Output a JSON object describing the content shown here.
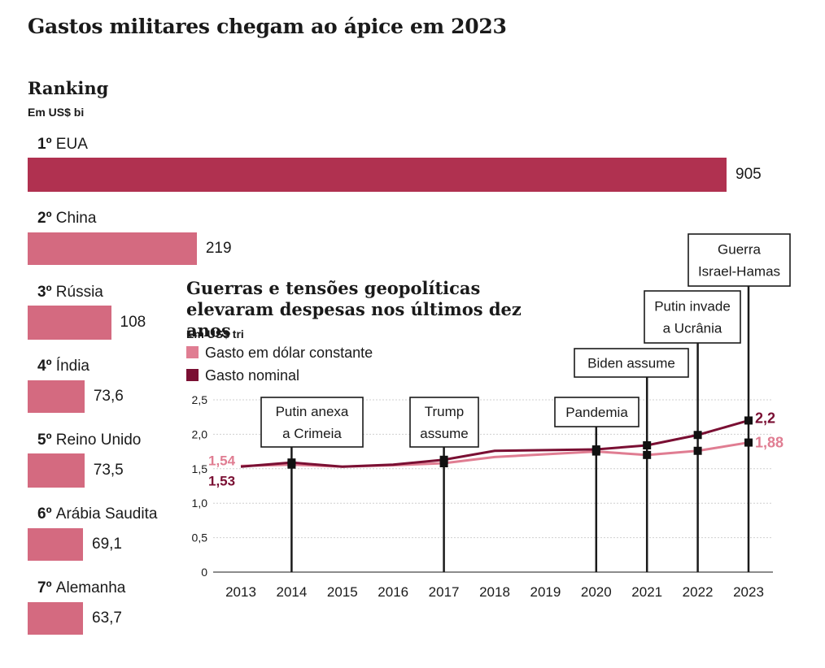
{
  "title": "Gastos militares chegam ao ápice em 2023",
  "colors": {
    "bar_top": "#b03150",
    "bar": "#d46a80",
    "constant": "#e07d92",
    "nominal": "#7a0f33"
  },
  "ranking": {
    "title": "Ranking",
    "unit": "Em US$ bi"
  },
  "chart_data": [
    {
      "type": "bar",
      "orientation": "horizontal",
      "title": "Ranking",
      "unit": "Em US$ bi",
      "categories": [
        "EUA",
        "China",
        "Rússia",
        "Índia",
        "Reino Unido",
        "Arábia Saudita",
        "Alemanha"
      ],
      "ranks": [
        "1º",
        "2º",
        "3º",
        "4º",
        "5º",
        "6º",
        "7º"
      ],
      "values": [
        905,
        219,
        108,
        73.6,
        73.5,
        69.1,
        63.7
      ],
      "value_labels": [
        "905",
        "219",
        "108",
        "73,6",
        "73,5",
        "69,1",
        "63,7"
      ]
    },
    {
      "type": "line",
      "title": "Guerras e tensões geopolíticas elevaram despesas nos últimos dez anos",
      "unit": "Em US$ tri",
      "x": [
        2013,
        2014,
        2015,
        2016,
        2017,
        2018,
        2019,
        2020,
        2021,
        2022,
        2023
      ],
      "ylim": [
        0,
        2.5
      ],
      "yticks": [
        "0",
        "0,5",
        "1,0",
        "1,5",
        "2,0",
        "2,5"
      ],
      "series": [
        {
          "name": "Gasto em dólar constante",
          "values": [
            1.54,
            1.56,
            1.53,
            1.55,
            1.58,
            1.67,
            1.71,
            1.75,
            1.7,
            1.76,
            1.88
          ],
          "start_label": "1,54",
          "end_label": "1,88"
        },
        {
          "name": "Gasto nominal",
          "values": [
            1.53,
            1.59,
            1.53,
            1.56,
            1.63,
            1.76,
            1.77,
            1.78,
            1.84,
            1.99,
            2.2
          ],
          "start_label": "1,53",
          "end_label": "2,2"
        }
      ],
      "events": [
        {
          "year": 2014,
          "label": [
            "Putin anexa",
            "a Crimeia"
          ]
        },
        {
          "year": 2017,
          "label": [
            "Trump",
            "assume"
          ]
        },
        {
          "year": 2020,
          "label": [
            "Pandemia"
          ]
        },
        {
          "year": 2021,
          "label": [
            "Biden assume"
          ]
        },
        {
          "year": 2022,
          "label": [
            "Putin invade",
            "a Ucrânia"
          ]
        },
        {
          "year": 2023,
          "label": [
            "Guerra",
            "Israel-Hamas"
          ]
        }
      ]
    }
  ]
}
